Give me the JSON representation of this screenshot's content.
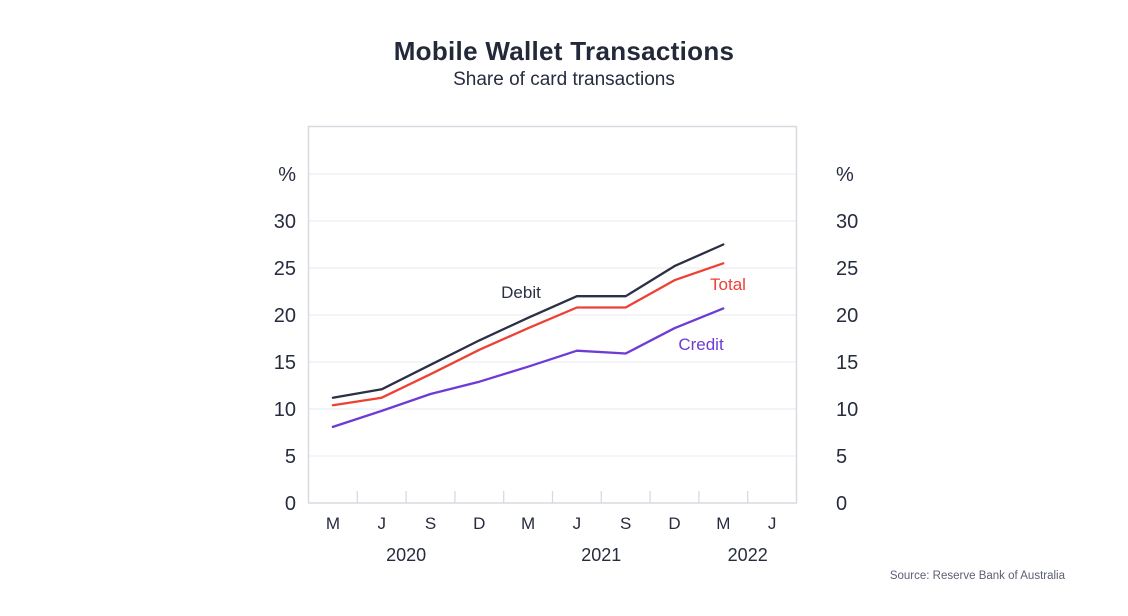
{
  "header": {
    "title": "Mobile Wallet Transactions",
    "subtitle": "Share of card transactions"
  },
  "source": "Source: Reserve Bank of Australia",
  "chart_data": {
    "type": "line",
    "title": "Mobile Wallet Transactions",
    "subtitle": "Share of card transactions",
    "unit": "%",
    "xlabel": "",
    "ylabel": "%",
    "ylim": [
      0,
      35
    ],
    "y_ticks_labeled": [
      0,
      5,
      10,
      15,
      20,
      25,
      30
    ],
    "grid": true,
    "legend_position": "inline-labels",
    "x_tick_labels": [
      "M",
      "J",
      "S",
      "D",
      "M",
      "J",
      "S",
      "D",
      "M",
      "J"
    ],
    "years": [
      {
        "label": "2020",
        "month_span": [
          0,
          3
        ]
      },
      {
        "label": "2021",
        "month_span": [
          4,
          7
        ]
      },
      {
        "label": "2022",
        "month_span": [
          8,
          9
        ]
      }
    ],
    "series": [
      {
        "name": "Credit",
        "color": "#6e3bd4",
        "values": [
          8.1,
          9.8,
          11.6,
          12.9,
          14.5,
          16.2,
          15.9,
          18.6,
          20.7
        ]
      },
      {
        "name": "Total",
        "color": "#ee4135",
        "values": [
          10.4,
          11.2,
          13.7,
          16.3,
          18.6,
          20.8,
          20.8,
          23.7,
          25.5
        ]
      },
      {
        "name": "Debit",
        "color": "#2b3044",
        "values": [
          11.2,
          12.1,
          14.7,
          17.3,
          19.7,
          22.0,
          22.0,
          25.2,
          27.5
        ]
      }
    ]
  },
  "colors": {
    "frame": "#d6dae1",
    "grid": "#e9edf2",
    "text": "#262c3e"
  }
}
